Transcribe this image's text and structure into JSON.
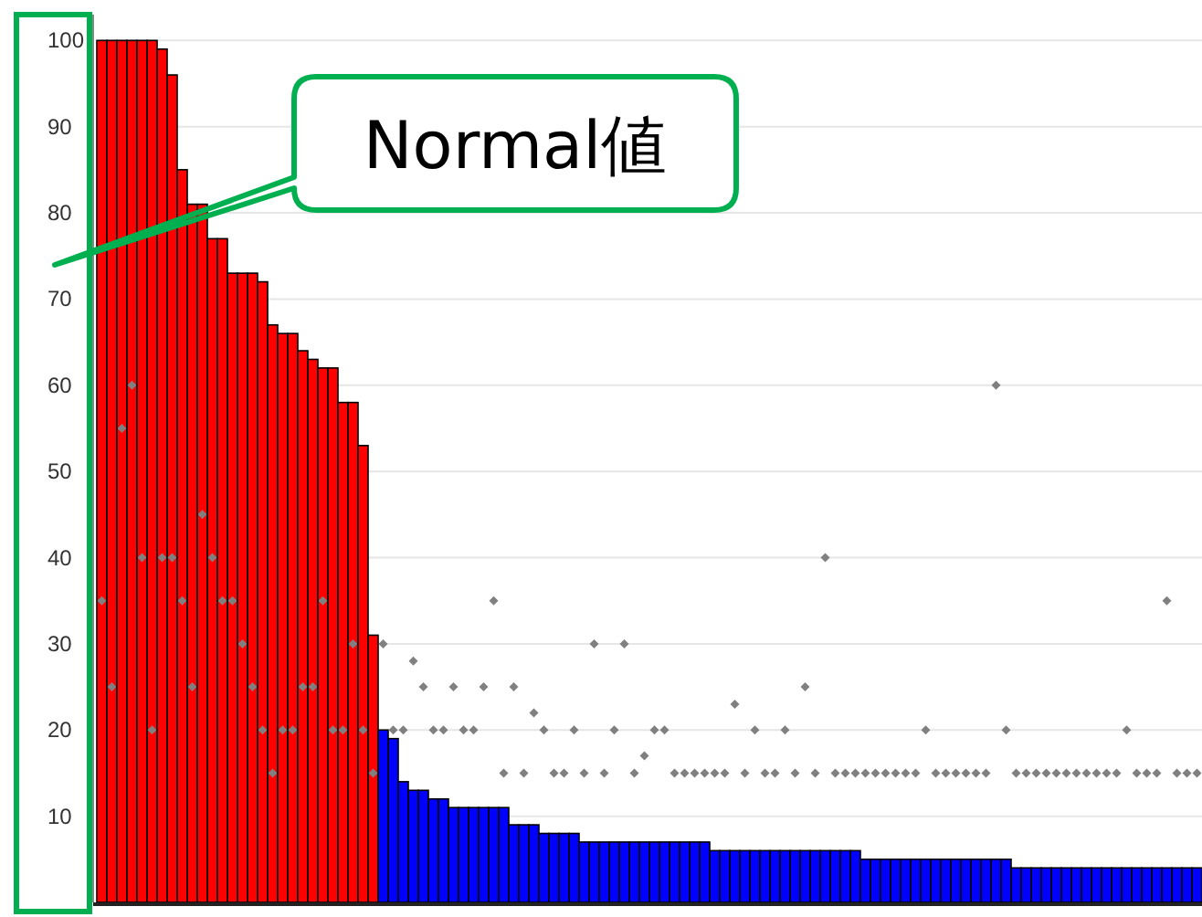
{
  "chart_data": {
    "type": "bar",
    "categories": [
      null,
      null,
      null,
      null,
      null,
      null,
      null,
      null,
      null,
      null,
      null,
      null,
      null,
      null,
      null,
      null,
      null,
      null,
      null,
      null,
      null,
      null,
      null,
      null,
      null,
      null,
      null,
      null,
      null,
      null,
      null,
      null,
      null,
      null,
      null,
      null,
      null,
      null,
      null,
      null,
      null,
      null,
      null,
      null,
      null,
      null,
      null,
      null,
      null,
      null,
      null,
      null,
      null,
      null,
      null,
      null,
      null,
      null,
      null,
      null,
      null,
      null,
      null,
      null,
      null,
      null,
      null,
      null,
      null,
      null,
      null,
      null,
      null,
      null,
      null,
      null,
      null,
      null,
      null,
      null,
      null,
      null,
      null,
      null,
      null,
      null,
      null,
      null,
      null,
      null,
      null,
      null,
      null,
      null,
      null,
      null,
      null,
      null,
      null,
      null,
      null,
      null,
      null,
      null,
      null,
      null,
      null,
      null,
      null,
      null
    ],
    "series": [
      {
        "values": [
          100,
          100,
          100,
          100,
          100,
          100,
          99,
          96,
          85,
          81,
          81,
          77,
          77,
          73,
          73,
          73,
          72,
          67,
          66,
          66,
          64,
          63,
          62,
          62,
          58,
          58,
          53,
          31,
          20,
          19,
          14,
          13,
          13,
          12,
          12,
          11,
          11,
          11,
          11,
          11,
          11,
          9,
          9,
          9,
          8,
          8,
          8,
          8,
          7,
          7,
          7,
          7,
          7,
          7,
          7,
          7,
          7,
          7,
          7,
          7,
          7,
          6,
          6,
          6,
          6,
          6,
          6,
          6,
          6,
          6,
          6,
          6,
          6,
          6,
          6,
          6,
          5,
          5,
          5,
          5,
          5,
          5,
          5,
          5,
          5,
          5,
          5,
          5,
          5,
          5,
          5,
          4,
          4,
          4,
          4,
          4,
          4,
          4,
          4,
          4,
          4,
          4,
          4,
          4,
          4,
          4,
          4,
          4,
          4,
          4
        ],
        "colors": [
          "#ff0000",
          "#ff0000",
          "#ff0000",
          "#ff0000",
          "#ff0000",
          "#ff0000",
          "#ff0000",
          "#ff0000",
          "#ff0000",
          "#ff0000",
          "#ff0000",
          "#ff0000",
          "#ff0000",
          "#ff0000",
          "#ff0000",
          "#ff0000",
          "#ff0000",
          "#ff0000",
          "#ff0000",
          "#ff0000",
          "#ff0000",
          "#ff0000",
          "#ff0000",
          "#ff0000",
          "#ff0000",
          "#ff0000",
          "#ff0000",
          "#ff0000",
          "#0000ff",
          "#0000ff",
          "#0000ff",
          "#0000ff",
          "#0000ff",
          "#0000ff",
          "#0000ff",
          "#0000ff",
          "#0000ff",
          "#0000ff",
          "#0000ff",
          "#0000ff",
          "#0000ff",
          "#0000ff",
          "#0000ff",
          "#0000ff",
          "#0000ff",
          "#0000ff",
          "#0000ff",
          "#0000ff",
          "#0000ff",
          "#0000ff",
          "#0000ff",
          "#0000ff",
          "#0000ff",
          "#0000ff",
          "#0000ff",
          "#0000ff",
          "#0000ff",
          "#0000ff",
          "#0000ff",
          "#0000ff",
          "#0000ff",
          "#0000ff",
          "#0000ff",
          "#0000ff",
          "#0000ff",
          "#0000ff",
          "#0000ff",
          "#0000ff",
          "#0000ff",
          "#0000ff",
          "#0000ff",
          "#0000ff",
          "#0000ff",
          "#0000ff",
          "#0000ff",
          "#0000ff",
          "#0000ff",
          "#0000ff",
          "#0000ff",
          "#0000ff",
          "#0000ff",
          "#0000ff",
          "#0000ff",
          "#0000ff",
          "#0000ff",
          "#0000ff",
          "#0000ff",
          "#0000ff",
          "#0000ff",
          "#0000ff",
          "#0000ff",
          "#0000ff",
          "#0000ff",
          "#0000ff",
          "#0000ff",
          "#0000ff",
          "#0000ff",
          "#0000ff",
          "#0000ff",
          "#0000ff",
          "#0000ff",
          "#0000ff",
          "#0000ff",
          "#0000ff",
          "#0000ff",
          "#0000ff",
          "#0000ff",
          "#0000ff",
          "#0000ff",
          "#0000ff"
        ]
      },
      {
        "type": "scatter",
        "color": "#808080",
        "values": [
          35,
          25,
          55,
          60,
          40,
          20,
          40,
          40,
          35,
          25,
          45,
          40,
          35,
          35,
          30,
          25,
          20,
          15,
          20,
          20,
          25,
          25,
          35,
          20,
          20,
          30,
          20,
          15,
          30,
          20,
          20,
          28,
          25,
          20,
          20,
          25,
          20,
          20,
          25,
          35,
          15,
          25,
          15,
          22,
          20,
          15,
          15,
          20,
          15,
          30,
          15,
          20,
          30,
          15,
          17,
          20,
          20,
          15,
          15,
          15,
          15,
          15,
          15,
          23,
          15,
          20,
          15,
          15,
          20,
          15,
          25,
          15,
          40,
          15,
          15,
          15,
          15,
          15,
          15,
          15,
          15,
          15,
          20,
          15,
          15,
          15,
          15,
          15,
          15,
          60,
          20,
          15,
          15,
          15,
          15,
          15,
          15,
          15,
          15,
          15,
          15,
          15,
          20,
          15,
          15,
          15,
          35,
          15,
          15,
          15
        ]
      }
    ],
    "ylim": [
      0,
      103
    ],
    "yticks": [
      10,
      20,
      30,
      40,
      50,
      60,
      70,
      80,
      90,
      100
    ],
    "grid": "y",
    "tick_labels": "y",
    "marker": "diamond",
    "annotations": [
      "Normal値"
    ]
  }
}
